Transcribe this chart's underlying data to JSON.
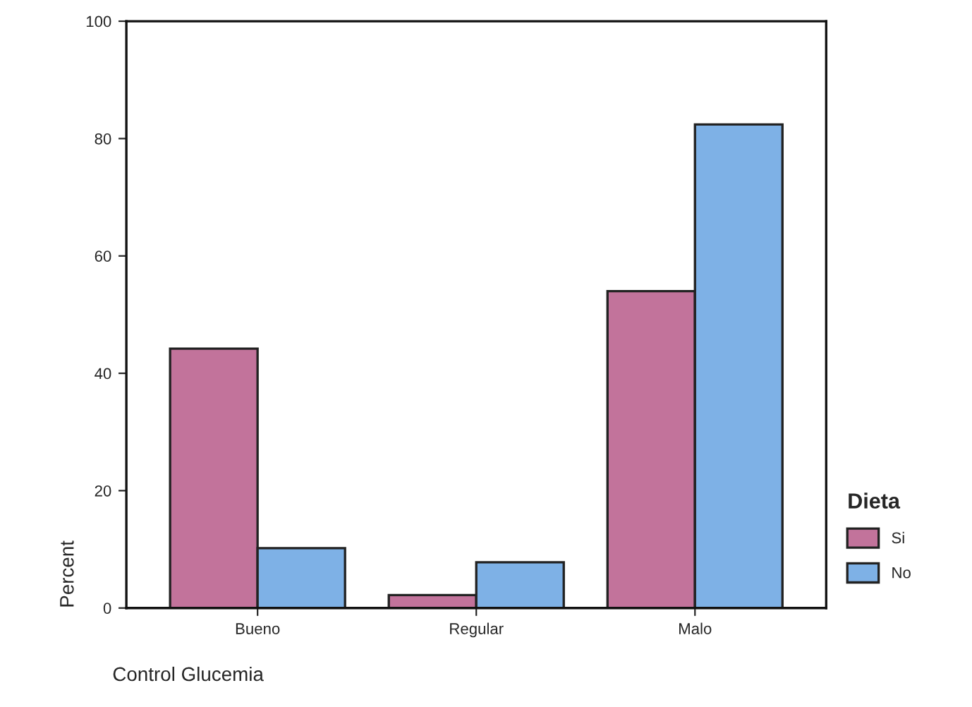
{
  "chart_data": {
    "type": "bar",
    "xlabel": "Control Glucemia",
    "ylabel": "Percent",
    "legend_title": "Dieta",
    "categories": [
      "Bueno",
      "Regular",
      "Malo"
    ],
    "series": [
      {
        "name": "Si",
        "color": "#c2739b",
        "values": [
          44.2,
          2.2,
          54.0
        ]
      },
      {
        "name": "No",
        "color": "#7eb1e6",
        "values": [
          10.2,
          7.8,
          82.4
        ]
      }
    ],
    "ylim": [
      0,
      100
    ],
    "yticks": [
      0,
      20,
      40,
      60,
      80,
      100
    ],
    "grid": false,
    "legend": "right"
  }
}
